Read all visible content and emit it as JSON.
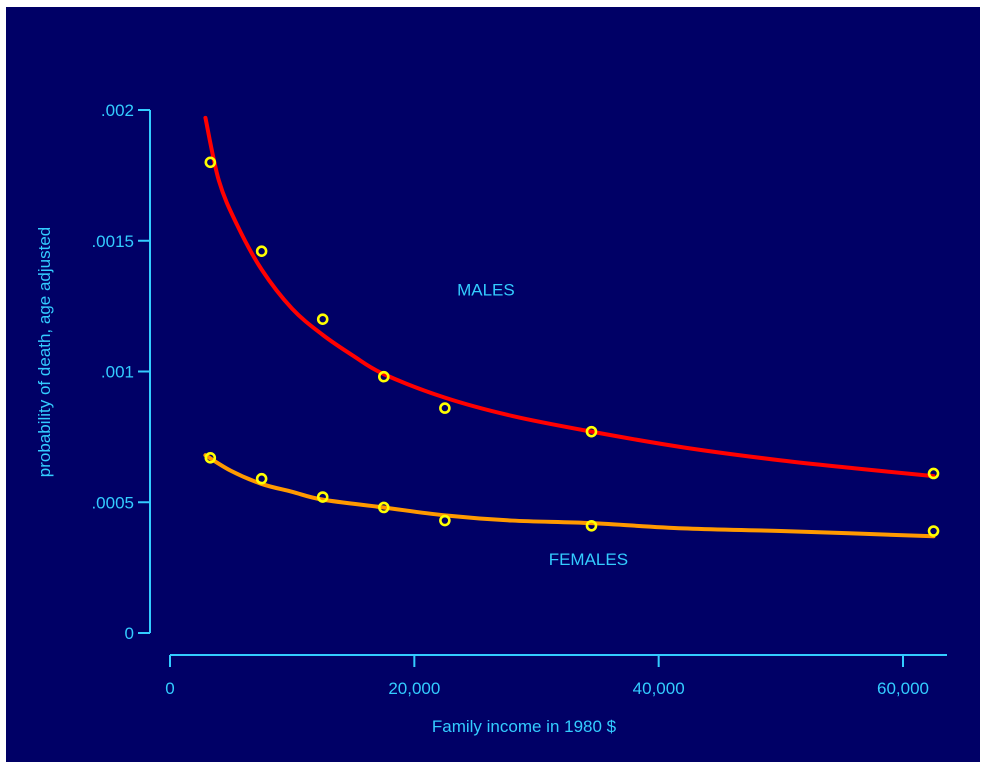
{
  "chart_data": {
    "type": "scatter",
    "title": "",
    "xlabel": "Family income in 1980 $",
    "ylabel": "probability of death, age adjusted",
    "xlim": [
      0,
      64000
    ],
    "ylim": [
      0,
      0.002
    ],
    "x_ticks": [
      {
        "value": 0,
        "label": "0"
      },
      {
        "value": 20000,
        "label": "20,000"
      },
      {
        "value": 40000,
        "label": "40,000"
      },
      {
        "value": 60000,
        "label": "60,000"
      }
    ],
    "y_ticks": [
      {
        "value": 0,
        "label": "0"
      },
      {
        "value": 0.0005,
        "label": ".0005"
      },
      {
        "value": 0.001,
        "label": ".001"
      },
      {
        "value": 0.0015,
        "label": ".0015"
      },
      {
        "value": 0.002,
        "label": ".002"
      }
    ],
    "grid": false,
    "series": [
      {
        "name": "MALES",
        "points": [
          {
            "x": 3300,
            "y": 0.0018
          },
          {
            "x": 7500,
            "y": 0.00146
          },
          {
            "x": 12500,
            "y": 0.0012
          },
          {
            "x": 17500,
            "y": 0.00098
          },
          {
            "x": 22500,
            "y": 0.00086
          },
          {
            "x": 34500,
            "y": 0.00077
          },
          {
            "x": 62500,
            "y": 0.00061
          }
        ],
        "fit_curve": [
          {
            "x": 2900,
            "y": 0.00197
          },
          {
            "x": 4000,
            "y": 0.00173
          },
          {
            "x": 5500,
            "y": 0.00156
          },
          {
            "x": 7500,
            "y": 0.00139
          },
          {
            "x": 10000,
            "y": 0.00124
          },
          {
            "x": 12500,
            "y": 0.00114
          },
          {
            "x": 15000,
            "y": 0.00106
          },
          {
            "x": 17500,
            "y": 0.00099
          },
          {
            "x": 22500,
            "y": 0.0009
          },
          {
            "x": 28000,
            "y": 0.00083
          },
          {
            "x": 34500,
            "y": 0.00077
          },
          {
            "x": 42000,
            "y": 0.00071
          },
          {
            "x": 50000,
            "y": 0.00066
          },
          {
            "x": 56000,
            "y": 0.00063
          },
          {
            "x": 62500,
            "y": 0.0006
          }
        ],
        "point_color": "#ffff00",
        "line_color": "#ff0000"
      },
      {
        "name": "FEMALES",
        "points": [
          {
            "x": 3300,
            "y": 0.00067
          },
          {
            "x": 7500,
            "y": 0.00059
          },
          {
            "x": 12500,
            "y": 0.00052
          },
          {
            "x": 17500,
            "y": 0.00048
          },
          {
            "x": 22500,
            "y": 0.00043
          },
          {
            "x": 34500,
            "y": 0.00041
          },
          {
            "x": 62500,
            "y": 0.00039
          }
        ],
        "fit_curve": [
          {
            "x": 2900,
            "y": 0.00068
          },
          {
            "x": 5000,
            "y": 0.00062
          },
          {
            "x": 7500,
            "y": 0.00057
          },
          {
            "x": 10000,
            "y": 0.00054
          },
          {
            "x": 12500,
            "y": 0.00051
          },
          {
            "x": 17500,
            "y": 0.00048
          },
          {
            "x": 22500,
            "y": 0.00045
          },
          {
            "x": 28000,
            "y": 0.00043
          },
          {
            "x": 34500,
            "y": 0.00042
          },
          {
            "x": 42000,
            "y": 0.0004
          },
          {
            "x": 50000,
            "y": 0.00039
          },
          {
            "x": 62500,
            "y": 0.00037
          }
        ],
        "point_color": "#ffff00",
        "line_color": "#ff9900"
      }
    ],
    "annotations": [
      {
        "text": "MALES",
        "x": 23500,
        "y": 0.00129
      },
      {
        "text": "FEMALES",
        "x": 31000,
        "y": 0.00026
      }
    ],
    "colors": {
      "background": "#000066",
      "axis": "#33ccff",
      "text": "#33ccff"
    }
  }
}
